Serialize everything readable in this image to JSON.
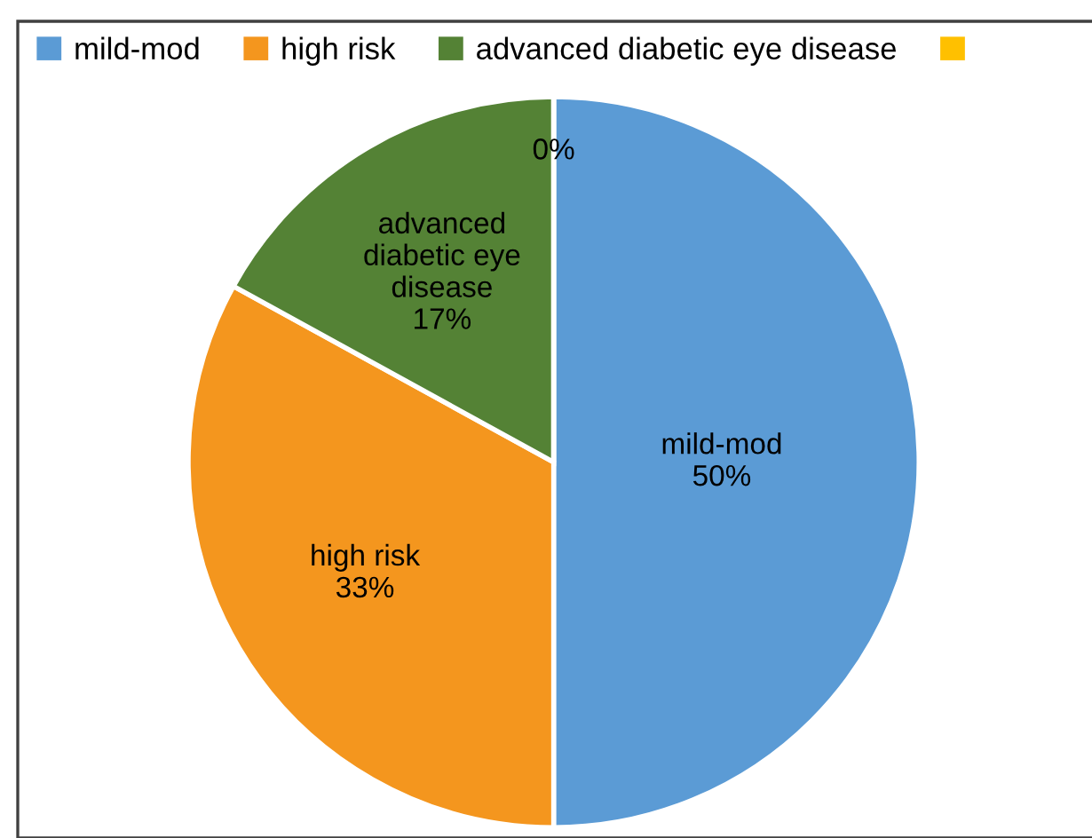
{
  "chart_data": {
    "type": "pie",
    "categories": [
      "mild-mod",
      "high risk",
      "advanced diabetic eye disease",
      null
    ],
    "values": [
      50,
      33,
      17,
      0
    ],
    "colors": [
      "#5b9bd5",
      "#f4961e",
      "#548235",
      "#ffc000"
    ],
    "value_labels": [
      "50%",
      "33%",
      "17%",
      "0%"
    ],
    "legend": "top"
  }
}
